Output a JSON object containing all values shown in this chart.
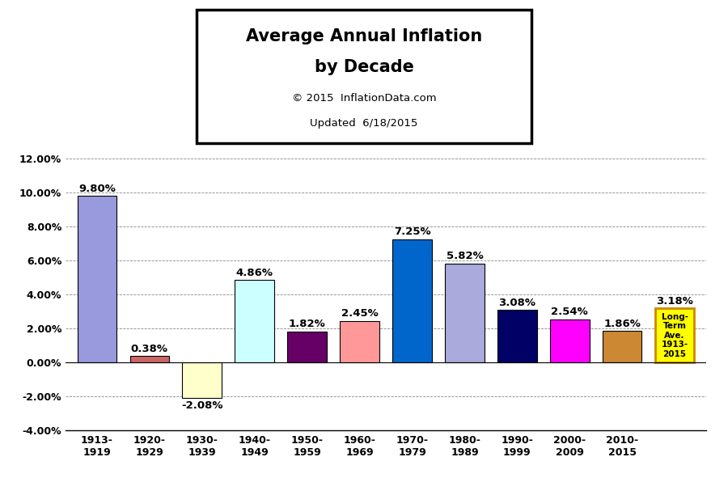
{
  "categories": [
    "1913-\n1919",
    "1920-\n1929",
    "1930-\n1939",
    "1940-\n1949",
    "1950-\n1959",
    "1960-\n1969",
    "1970-\n1979",
    "1980-\n1989",
    "1990-\n1999",
    "2000-\n2009",
    "2010-\n2015"
  ],
  "values": [
    9.8,
    0.38,
    -2.08,
    4.86,
    1.82,
    2.45,
    7.25,
    5.82,
    3.08,
    2.54,
    1.86
  ],
  "long_term_avg": 3.18,
  "bar_colors": [
    "#9999dd",
    "#cc6666",
    "#ffffcc",
    "#ccffff",
    "#660066",
    "#ff9999",
    "#0066cc",
    "#aaaadd",
    "#000066",
    "#ff00ff",
    "#cc8833"
  ],
  "long_term_color": "#ffff00",
  "long_term_edge": "#cc8800",
  "title_line1": "Average Annual Inflation",
  "title_line2": "by Decade",
  "subtitle1": "© 2015  InflationData.com",
  "subtitle2": "Updated  6/18/2015",
  "ylim": [
    -4.0,
    12.0
  ],
  "yticks": [
    -4.0,
    -2.0,
    0.0,
    2.0,
    4.0,
    6.0,
    8.0,
    10.0,
    12.0
  ],
  "background_color": "#ffffff",
  "grid_color": "#888888",
  "value_fontsize": 9.5,
  "tick_fontsize": 9,
  "title_fontsize": 15,
  "subtitle_fontsize": 9.5
}
